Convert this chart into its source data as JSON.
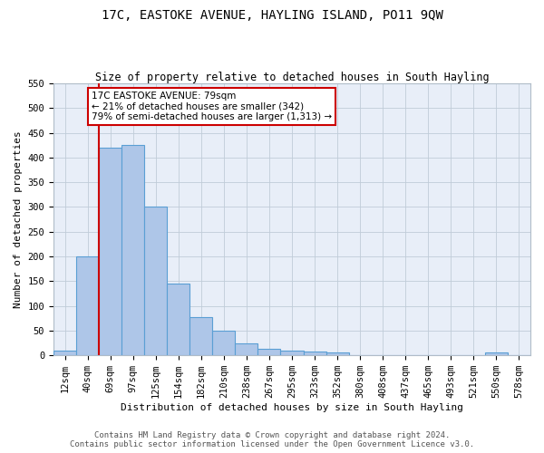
{
  "title": "17C, EASTOKE AVENUE, HAYLING ISLAND, PO11 9QW",
  "subtitle": "Size of property relative to detached houses in South Hayling",
  "xlabel": "Distribution of detached houses by size in South Hayling",
  "ylabel": "Number of detached properties",
  "categories": [
    "12sqm",
    "40sqm",
    "69sqm",
    "97sqm",
    "125sqm",
    "154sqm",
    "182sqm",
    "210sqm",
    "238sqm",
    "267sqm",
    "295sqm",
    "323sqm",
    "352sqm",
    "380sqm",
    "408sqm",
    "437sqm",
    "465sqm",
    "493sqm",
    "521sqm",
    "550sqm",
    "578sqm"
  ],
  "values": [
    10,
    200,
    420,
    425,
    300,
    145,
    78,
    50,
    25,
    14,
    10,
    8,
    5,
    0,
    0,
    0,
    0,
    0,
    0,
    5,
    0
  ],
  "bar_color": "#aec6e8",
  "bar_edgecolor": "#5a9fd4",
  "bar_linewidth": 0.8,
  "ylim": [
    0,
    550
  ],
  "yticks": [
    0,
    50,
    100,
    150,
    200,
    250,
    300,
    350,
    400,
    450,
    500,
    550
  ],
  "vline_color": "#cc0000",
  "vline_x_index": 2,
  "annotation_text": "17C EASTOKE AVENUE: 79sqm\n← 21% of detached houses are smaller (342)\n79% of semi-detached houses are larger (1,313) →",
  "footer_line1": "Contains HM Land Registry data © Crown copyright and database right 2024.",
  "footer_line2": "Contains public sector information licensed under the Open Government Licence v3.0.",
  "bg_color": "#e8eef8",
  "grid_color": "#c0ccd8",
  "title_fontsize": 10,
  "subtitle_fontsize": 8.5,
  "axis_label_fontsize": 8,
  "tick_fontsize": 7.5,
  "footer_fontsize": 6.5,
  "annot_fontsize": 7.5
}
